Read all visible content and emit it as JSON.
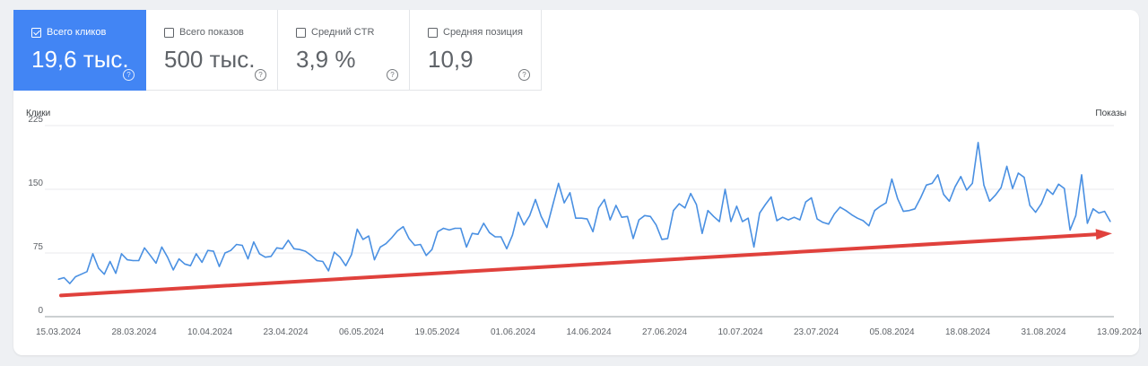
{
  "metrics": [
    {
      "label": "Всего кликов",
      "value": "19,6 тыс.",
      "selected": true,
      "help": "?"
    },
    {
      "label": "Всего показов",
      "value": "500 тыс.",
      "selected": false,
      "help": "?"
    },
    {
      "label": "Средний CTR",
      "value": "3,9 %",
      "selected": false,
      "help": "?"
    },
    {
      "label": "Средняя позиция",
      "value": "10,9",
      "selected": false,
      "help": "?"
    }
  ],
  "colors": {
    "accent": "#4285f4",
    "series": "#4a90e2",
    "trend": "#e0413c",
    "grid": "#e8eaed"
  },
  "chart_data": {
    "type": "line",
    "left_axis_title": "Клики",
    "right_axis_title": "Показы",
    "ylim": [
      0,
      225
    ],
    "y_ticks": [
      0,
      75,
      150,
      225
    ],
    "x_tick_labels": [
      "15.03.2024",
      "28.03.2024",
      "10.04.2024",
      "23.04.2024",
      "06.05.2024",
      "19.05.2024",
      "01.06.2024",
      "14.06.2024",
      "27.06.2024",
      "10.07.2024",
      "23.07.2024",
      "05.08.2024",
      "18.08.2024",
      "31.08.2024",
      "13.09.2024"
    ],
    "grid": true,
    "series": [
      {
        "x_start": "15.03.2024",
        "x_end": "13.09.2024",
        "values": [
          44,
          46,
          39,
          47,
          50,
          53,
          74,
          57,
          50,
          65,
          51,
          74,
          67,
          66,
          66,
          81,
          72,
          63,
          82,
          70,
          55,
          68,
          62,
          60,
          74,
          64,
          78,
          77,
          59,
          75,
          78,
          85,
          84,
          68,
          88,
          74,
          70,
          71,
          81,
          80,
          90,
          80,
          79,
          77,
          72,
          66,
          65,
          54,
          76,
          70,
          60,
          73,
          103,
          91,
          95,
          67,
          82,
          86,
          93,
          101,
          106,
          92,
          84,
          85,
          72,
          79,
          100,
          104,
          102,
          104,
          104,
          82,
          98,
          97,
          110,
          99,
          94,
          94,
          80,
          96,
          123,
          108,
          119,
          138,
          118,
          105,
          131,
          157,
          134,
          146,
          116,
          116,
          115,
          100,
          128,
          138,
          114,
          131,
          117,
          118,
          92,
          114,
          119,
          118,
          108,
          91,
          92,
          125,
          133,
          128,
          145,
          132,
          98,
          125,
          118,
          112,
          150,
          112,
          130,
          112,
          116,
          82,
          122,
          132,
          141,
          113,
          117,
          114,
          117,
          114,
          135,
          140,
          115,
          111,
          109,
          121,
          129,
          125,
          120,
          116,
          113,
          107,
          125,
          130,
          134,
          162,
          139,
          124,
          125,
          127,
          140,
          155,
          157,
          167,
          144,
          136,
          153,
          165,
          149,
          157,
          205,
          155,
          136,
          143,
          152,
          177,
          151,
          169,
          164,
          131,
          123,
          133,
          150,
          144,
          156,
          151,
          102,
          119,
          167,
          110,
          127,
          122,
          124,
          112
        ]
      }
    ],
    "trend_line": {
      "from": 25,
      "to": 97
    }
  }
}
